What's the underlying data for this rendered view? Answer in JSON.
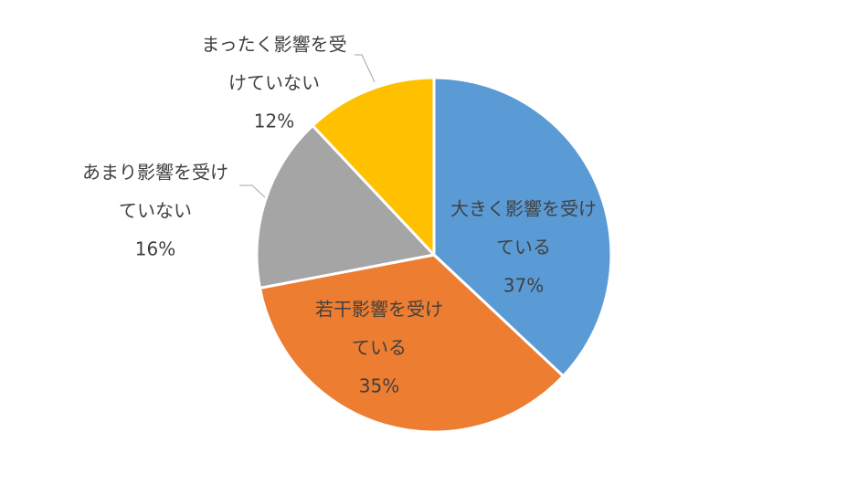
{
  "chart_data": {
    "type": "pie",
    "categories": [
      [
        "大きく影響を受け",
        "ている"
      ],
      [
        "若干影響を受け",
        "ている"
      ],
      [
        "あまり影響を受け",
        "ていない"
      ],
      [
        "まったく影響を受",
        "けていない"
      ]
    ],
    "values": [
      37,
      35,
      16,
      12
    ],
    "value_labels": [
      "37%",
      "35%",
      "16%",
      "12%"
    ],
    "colors": [
      "#5b9bd5",
      "#ed7d31",
      "#a5a5a5",
      "#ffc000"
    ]
  }
}
